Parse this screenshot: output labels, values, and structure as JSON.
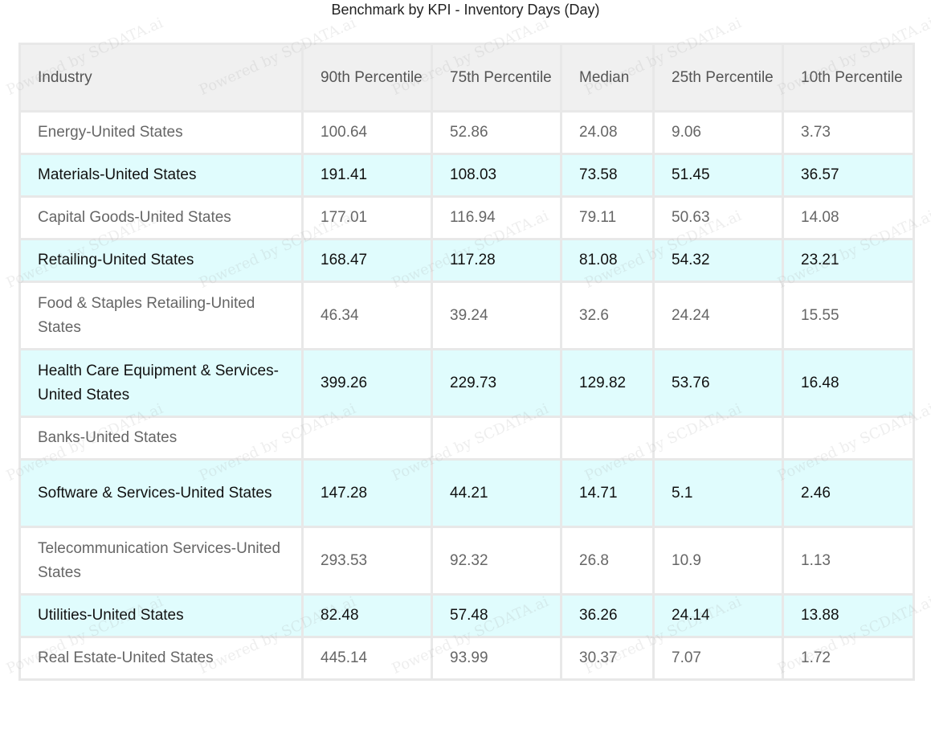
{
  "title": "Benchmark by KPI - Inventory Days (Day)",
  "watermark_text": "Powered by SCDATA.ai",
  "colors": {
    "header_bg": "#f0f0f0",
    "highlight_row_bg": "#e0fcfd",
    "border": "#e8e8e8"
  },
  "chart_data": {
    "type": "table",
    "title": "Benchmark by KPI - Inventory Days (Day)",
    "columns": [
      "Industry",
      "90th Percentile",
      "75th Percentile",
      "Median",
      "25th Percentile",
      "10th Percentile"
    ],
    "rows": [
      {
        "industry": "Energy-United States",
        "p90": "100.64",
        "p75": "52.86",
        "median": "24.08",
        "p25": "9.06",
        "p10": "3.73"
      },
      {
        "industry": "Materials-United States",
        "p90": "191.41",
        "p75": "108.03",
        "median": "73.58",
        "p25": "51.45",
        "p10": "36.57"
      },
      {
        "industry": "Capital Goods-United States",
        "p90": "177.01",
        "p75": "116.94",
        "median": "79.11",
        "p25": "50.63",
        "p10": "14.08"
      },
      {
        "industry": "Retailing-United States",
        "p90": "168.47",
        "p75": "117.28",
        "median": "81.08",
        "p25": "54.32",
        "p10": "23.21"
      },
      {
        "industry": "Food & Staples Retailing-United States",
        "p90": "46.34",
        "p75": "39.24",
        "median": "32.6",
        "p25": "24.24",
        "p10": "15.55"
      },
      {
        "industry": "Health Care Equipment & Services-United States",
        "p90": "399.26",
        "p75": "229.73",
        "median": "129.82",
        "p25": "53.76",
        "p10": "16.48"
      },
      {
        "industry": "Banks-United States",
        "p90": "",
        "p75": "",
        "median": "",
        "p25": "",
        "p10": ""
      },
      {
        "industry": "Software & Services-United States",
        "p90": "147.28",
        "p75": "44.21",
        "median": "14.71",
        "p25": "5.1",
        "p10": "2.46"
      },
      {
        "industry": "Telecommunication Services-United States",
        "p90": "293.53",
        "p75": "92.32",
        "median": "26.8",
        "p25": "10.9",
        "p10": "1.13"
      },
      {
        "industry": "Utilities-United States",
        "p90": "82.48",
        "p75": "57.48",
        "median": "36.26",
        "p25": "24.14",
        "p10": "13.88"
      },
      {
        "industry": "Real Estate-United States",
        "p90": "445.14",
        "p75": "93.99",
        "median": "30.37",
        "p25": "7.07",
        "p10": "1.72"
      }
    ]
  }
}
